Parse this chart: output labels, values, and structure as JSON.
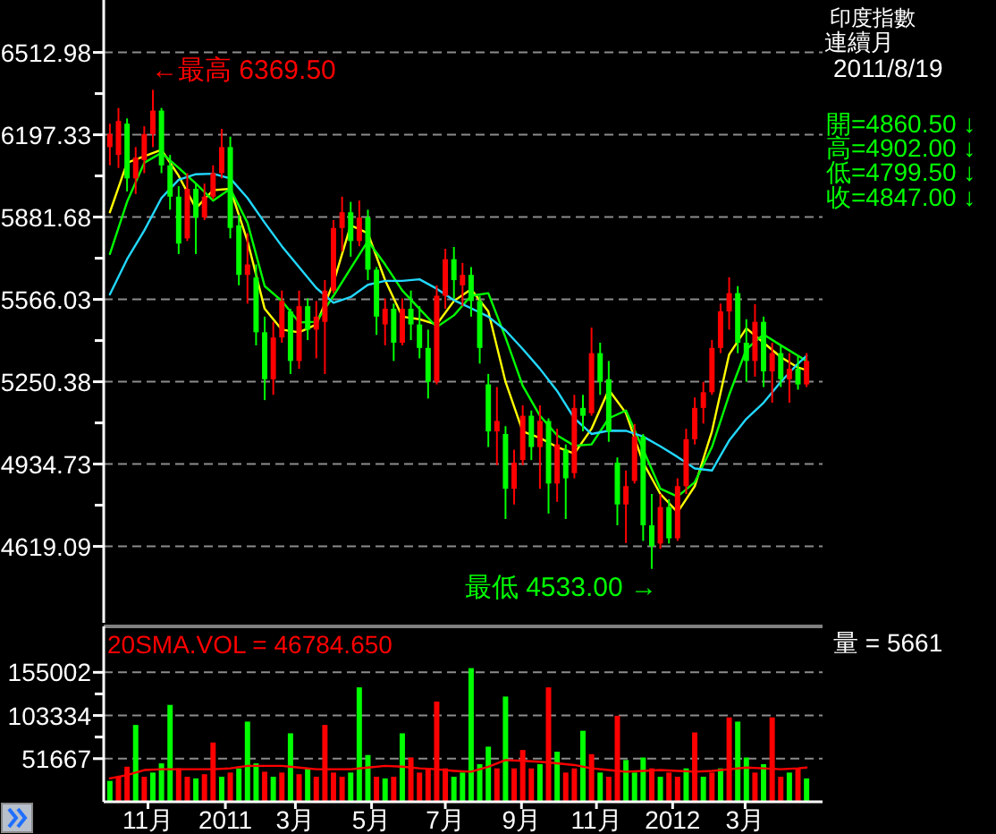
{
  "chart_data": [
    {
      "type": "candlestick",
      "title": "印度指數",
      "subtitle": "連續月",
      "x": [
        "2010-10-01",
        "2010-10-08",
        "2010-10-15",
        "2010-10-22",
        "2010-10-29",
        "2010-11-05",
        "2010-11-12",
        "2010-11-19",
        "2010-11-26",
        "2010-12-03",
        "2010-12-10",
        "2010-12-17",
        "2010-12-24",
        "2010-12-31",
        "2011-01-07",
        "2011-01-14",
        "2011-01-21",
        "2011-01-28",
        "2011-02-04",
        "2011-02-11",
        "2011-02-18",
        "2011-02-25",
        "2011-03-04",
        "2011-03-11",
        "2011-03-18",
        "2011-03-25",
        "2011-04-01",
        "2011-04-08",
        "2011-04-15",
        "2011-04-22",
        "2011-04-29",
        "2011-05-06",
        "2011-05-13",
        "2011-05-20",
        "2011-05-27",
        "2011-06-03",
        "2011-06-10",
        "2011-06-17",
        "2011-06-24",
        "2011-07-01",
        "2011-07-08",
        "2011-07-15",
        "2011-07-22",
        "2011-07-29",
        "2011-08-05",
        "2011-08-12",
        "2011-08-19",
        "2011-08-26",
        "2011-09-02",
        "2011-09-09",
        "2011-09-16",
        "2011-09-23",
        "2011-09-30",
        "2011-10-07",
        "2011-10-14",
        "2011-10-21",
        "2011-10-28",
        "2011-11-04",
        "2011-11-11",
        "2011-11-18",
        "2011-11-25",
        "2011-12-02",
        "2011-12-09",
        "2011-12-16",
        "2011-12-23",
        "2011-12-30",
        "2012-01-06",
        "2012-01-13",
        "2012-01-20",
        "2012-01-27",
        "2012-02-03",
        "2012-02-10",
        "2012-02-17",
        "2012-02-24",
        "2012-03-02",
        "2012-03-09",
        "2012-03-16",
        "2012-03-23",
        "2012-03-30",
        "2012-04-06",
        "2012-04-13",
        "2012-04-20"
      ],
      "ohlc": [
        [
          6150,
          6240,
          6080,
          6200
        ],
        [
          6120,
          6300,
          6070,
          6250
        ],
        [
          6240,
          6260,
          5980,
          6030
        ],
        [
          6030,
          6150,
          5970,
          6110
        ],
        [
          6100,
          6230,
          6050,
          6200
        ],
        [
          6200,
          6369.5,
          6150,
          6290
        ],
        [
          6290,
          6300,
          6050,
          6080
        ],
        [
          6080,
          6120,
          5910,
          5960
        ],
        [
          5960,
          6000,
          5740,
          5780
        ],
        [
          5800,
          6050,
          5790,
          5990
        ],
        [
          5990,
          6010,
          5740,
          5880
        ],
        [
          5880,
          6010,
          5870,
          5960
        ],
        [
          5960,
          6080,
          5950,
          6050
        ],
        [
          6050,
          6220,
          6030,
          6150
        ],
        [
          6150,
          6190,
          5800,
          5840
        ],
        [
          5850,
          5890,
          5620,
          5660
        ],
        [
          5660,
          5820,
          5550,
          5700
        ],
        [
          5650,
          5700,
          5390,
          5440
        ],
        [
          5440,
          5500,
          5180,
          5260
        ],
        [
          5260,
          5480,
          5200,
          5420
        ],
        [
          5420,
          5600,
          5400,
          5560
        ],
        [
          5520,
          5530,
          5280,
          5330
        ],
        [
          5330,
          5600,
          5300,
          5540
        ],
        [
          5540,
          5570,
          5410,
          5450
        ],
        [
          5450,
          5560,
          5340,
          5500
        ],
        [
          5480,
          5640,
          5280,
          5600
        ],
        [
          5600,
          5870,
          5590,
          5840
        ],
        [
          5840,
          5960,
          5750,
          5900
        ],
        [
          5900,
          5940,
          5730,
          5790
        ],
        [
          5790,
          5945,
          5770,
          5880
        ],
        [
          5880,
          5910,
          5640,
          5680
        ],
        [
          5680,
          5690,
          5430,
          5500
        ],
        [
          5470,
          5570,
          5390,
          5530
        ],
        [
          5530,
          5550,
          5330,
          5400
        ],
        [
          5400,
          5570,
          5390,
          5530
        ],
        [
          5530,
          5600,
          5410,
          5470
        ],
        [
          5470,
          5540,
          5340,
          5380
        ],
        [
          5380,
          5450,
          5186,
          5250
        ],
        [
          5250,
          5620,
          5240,
          5580
        ],
        [
          5580,
          5760,
          5530,
          5720
        ],
        [
          5720,
          5767,
          5570,
          5640
        ],
        [
          5620,
          5706,
          5540,
          5660
        ],
        [
          5660,
          5690,
          5500,
          5560
        ],
        [
          5560,
          5580,
          5320,
          5380
        ],
        [
          5240,
          5280,
          5000,
          5060
        ],
        [
          5060,
          5230,
          4930,
          5100
        ],
        [
          5050,
          5080,
          4724,
          4840
        ],
        [
          4840,
          4990,
          4780,
          4940
        ],
        [
          4950,
          5160,
          4930,
          5120
        ],
        [
          5120,
          5140,
          4950,
          5000
        ],
        [
          5000,
          5160,
          4840,
          5100
        ],
        [
          5100,
          5110,
          4745,
          4860
        ],
        [
          4860,
          5070,
          4790,
          5010
        ],
        [
          4990,
          5010,
          4724,
          4880
        ],
        [
          4900,
          5200,
          4880,
          5150
        ],
        [
          5150,
          5200,
          5060,
          5120
        ],
        [
          5130,
          5458,
          5120,
          5360
        ],
        [
          5360,
          5400,
          5200,
          5250
        ],
        [
          5260,
          5330,
          5020,
          5060
        ],
        [
          4940,
          4960,
          4700,
          4780
        ],
        [
          4780,
          4910,
          4632,
          4850
        ],
        [
          4870,
          5088,
          4860,
          5040
        ],
        [
          5040,
          5050,
          4640,
          4700
        ],
        [
          4700,
          4820,
          4533,
          4620
        ],
        [
          4630,
          4820,
          4610,
          4770
        ],
        [
          4770,
          4800,
          4630,
          4650
        ],
        [
          4650,
          4880,
          4640,
          4850
        ],
        [
          4850,
          5070,
          4820,
          5030
        ],
        [
          5030,
          5190,
          5010,
          5150
        ],
        [
          5150,
          5250,
          5090,
          5210
        ],
        [
          5210,
          5410,
          5200,
          5380
        ],
        [
          5380,
          5550,
          5360,
          5520
        ],
        [
          5520,
          5651,
          5450,
          5590
        ],
        [
          5590,
          5617,
          5360,
          5400
        ],
        [
          5400,
          5490,
          5250,
          5330
        ],
        [
          5330,
          5548,
          5270,
          5480
        ],
        [
          5480,
          5500,
          5230,
          5290
        ],
        [
          5290,
          5400,
          5170,
          5360
        ],
        [
          5360,
          5390,
          5230,
          5260
        ],
        [
          5260,
          5360,
          5170,
          5300
        ],
        [
          5300,
          5350,
          5220,
          5240
        ],
        [
          5240,
          5360,
          5230,
          5330
        ]
      ],
      "colors": [
        "#ff0000",
        "#ff0000",
        "#00ff00",
        "#ff0000",
        "#ff0000",
        "#ff0000",
        "#00ff00",
        "#00ff00",
        "#00ff00",
        "#ff0000",
        "#00ff00",
        "#ff0000",
        "#ff0000",
        "#ff0000",
        "#00ff00",
        "#00ff00",
        "#ff0000",
        "#00ff00",
        "#00ff00",
        "#ff0000",
        "#ff0000",
        "#00ff00",
        "#ff0000",
        "#00ff00",
        "#ff0000",
        "#ff0000",
        "#ff0000",
        "#ff0000",
        "#00ff00",
        "#ff0000",
        "#00ff00",
        "#00ff00",
        "#ff0000",
        "#00ff00",
        "#ff0000",
        "#00ff00",
        "#00ff00",
        "#00ff00",
        "#ff0000",
        "#ff0000",
        "#00ff00",
        "#ff0000",
        "#00ff00",
        "#00ff00",
        "#00ff00",
        "#ff0000",
        "#00ff00",
        "#ff0000",
        "#ff0000",
        "#00ff00",
        "#ff0000",
        "#00ff00",
        "#ff0000",
        "#00ff00",
        "#ff0000",
        "#00ff00",
        "#ff0000",
        "#00ff00",
        "#00ff00",
        "#00ff00",
        "#ff0000",
        "#ff0000",
        "#00ff00",
        "#00ff00",
        "#ff0000",
        "#00ff00",
        "#ff0000",
        "#ff0000",
        "#ff0000",
        "#ff0000",
        "#ff0000",
        "#ff0000",
        "#ff0000",
        "#00ff00",
        "#00ff00",
        "#ff0000",
        "#00ff00",
        "#ff0000",
        "#00ff00",
        "#ff0000",
        "#00ff00",
        "#ff0000"
      ],
      "series": [
        {
          "type": "line",
          "color": "#ffff00",
          "x": [
            "2010-10-01",
            "2010-10-15",
            "2010-10-29",
            "2010-11-12",
            "2010-11-26",
            "2010-12-10",
            "2010-12-24",
            "2011-01-07",
            "2011-01-21",
            "2011-02-04",
            "2011-02-18",
            "2011-03-04",
            "2011-03-18",
            "2011-04-01",
            "2011-04-15",
            "2011-04-29",
            "2011-05-13",
            "2011-05-27",
            "2011-06-10",
            "2011-06-24",
            "2011-07-08",
            "2011-07-22",
            "2011-08-05",
            "2011-08-19",
            "2011-09-02",
            "2011-09-16",
            "2011-09-30",
            "2011-10-14",
            "2011-10-28",
            "2011-11-11",
            "2011-11-25",
            "2011-12-09",
            "2011-12-23",
            "2012-01-06",
            "2012-01-20",
            "2012-02-03",
            "2012-02-17",
            "2012-03-02",
            "2012-03-16",
            "2012-03-30",
            "2012-04-13",
            "2012-04-20"
          ],
          "values": [
            5900,
            6090,
            6115,
            6140,
            6040,
            5915,
            5985,
            5990,
            5790,
            5530,
            5450,
            5440,
            5470,
            5630,
            5850,
            5820,
            5640,
            5500,
            5490,
            5470,
            5560,
            5605,
            5520,
            5250,
            5060,
            5035,
            5000,
            4975,
            5070,
            5220,
            5130,
            4940,
            4820,
            4750,
            4850,
            5060,
            5355,
            5455,
            5400,
            5345,
            5305,
            5295
          ]
        },
        {
          "type": "line",
          "color": "#00ff00",
          "x": [
            "2010-10-01",
            "2010-10-15",
            "2010-10-29",
            "2010-11-12",
            "2010-11-26",
            "2010-12-10",
            "2010-12-24",
            "2011-01-07",
            "2011-01-21",
            "2011-02-04",
            "2011-02-18",
            "2011-03-04",
            "2011-03-18",
            "2011-04-01",
            "2011-04-15",
            "2011-04-29",
            "2011-05-13",
            "2011-05-27",
            "2011-06-10",
            "2011-06-24",
            "2011-07-08",
            "2011-07-22",
            "2011-08-05",
            "2011-08-19",
            "2011-09-02",
            "2011-09-16",
            "2011-09-30",
            "2011-10-14",
            "2011-10-28",
            "2011-11-11",
            "2011-11-25",
            "2011-12-09",
            "2011-12-23",
            "2012-01-06",
            "2012-01-20",
            "2012-02-03",
            "2012-02-17",
            "2012-03-02",
            "2012-03-16",
            "2012-03-30",
            "2012-04-13",
            "2012-04-20"
          ],
          "values": [
            5740,
            5940,
            6090,
            6128,
            6070,
            6010,
            5945,
            5990,
            5860,
            5617,
            5560,
            5478,
            5480,
            5580,
            5685,
            5790,
            5700,
            5600,
            5530,
            5460,
            5505,
            5580,
            5590,
            5420,
            5235,
            5120,
            5045,
            5005,
            5010,
            5110,
            5140,
            4990,
            4840,
            4810,
            4865,
            5000,
            5200,
            5375,
            5432,
            5390,
            5350,
            5330
          ]
        },
        {
          "type": "line",
          "color": "#22d8ff",
          "x": [
            "2010-10-01",
            "2010-10-15",
            "2010-10-29",
            "2010-11-12",
            "2010-11-26",
            "2010-12-10",
            "2010-12-24",
            "2011-01-07",
            "2011-01-21",
            "2011-02-04",
            "2011-02-18",
            "2011-03-04",
            "2011-03-18",
            "2011-04-01",
            "2011-04-15",
            "2011-04-29",
            "2011-05-13",
            "2011-05-27",
            "2011-06-10",
            "2011-06-24",
            "2011-07-08",
            "2011-07-22",
            "2011-08-05",
            "2011-08-19",
            "2011-09-02",
            "2011-09-16",
            "2011-09-30",
            "2011-10-14",
            "2011-10-28",
            "2011-11-11",
            "2011-11-25",
            "2011-12-09",
            "2011-12-23",
            "2012-01-06",
            "2012-01-20",
            "2012-02-03",
            "2012-02-17",
            "2012-03-02",
            "2012-03-16",
            "2012-03-30",
            "2012-04-13",
            "2012-04-20"
          ],
          "values": [
            5585,
            5720,
            5830,
            5955,
            6025,
            6046,
            6048,
            6030,
            5955,
            5860,
            5770,
            5690,
            5610,
            5553,
            5575,
            5622,
            5637,
            5637,
            5643,
            5607,
            5563,
            5532,
            5500,
            5447,
            5376,
            5300,
            5215,
            5110,
            5050,
            5063,
            5062,
            5040,
            5003,
            4962,
            4918,
            4910,
            5025,
            5108,
            5170,
            5250,
            5320,
            5350
          ]
        }
      ],
      "xlim": [
        "2010-09-26",
        "2012-05-03"
      ],
      "ylim": [
        4326,
        6714
      ],
      "yticks": [
        6512.98,
        {
          "value": 6355.16,
          "label": null
        },
        6197.33,
        {
          "value": 6039.51,
          "label": null
        },
        5881.68,
        {
          "value": 5723.86,
          "label": null
        },
        5566.03,
        {
          "value": 5408.21,
          "label": null
        },
        5250.38,
        {
          "value": 5092.56,
          "label": null
        },
        4934.73,
        {
          "value": 4776.91,
          "label": null
        },
        4619.09
      ],
      "tick_labels": "y",
      "grid": "y",
      "annotations": [
        "2011/8/19",
        "開=4860.50 ↓",
        "高=4902.00 ↓",
        "低=4799.50 ↓",
        "收=4847.00 ↓",
        {
          "text": "←最高 6369.50",
          "x": "2010-11-05",
          "y": 6369.5
        },
        {
          "text": "最低 4533.00 →",
          "x": "2011-12-16",
          "y": 4533
        }
      ]
    },
    {
      "type": "bar",
      "x": [
        "2010-10-01",
        "2010-10-08",
        "2010-10-15",
        "2010-10-22",
        "2010-10-29",
        "2010-11-05",
        "2010-11-12",
        "2010-11-19",
        "2010-11-26",
        "2010-12-03",
        "2010-12-10",
        "2010-12-17",
        "2010-12-24",
        "2010-12-31",
        "2011-01-07",
        "2011-01-14",
        "2011-01-21",
        "2011-01-28",
        "2011-02-04",
        "2011-02-11",
        "2011-02-18",
        "2011-02-25",
        "2011-03-04",
        "2011-03-11",
        "2011-03-18",
        "2011-03-25",
        "2011-04-01",
        "2011-04-08",
        "2011-04-15",
        "2011-04-22",
        "2011-04-29",
        "2011-05-06",
        "2011-05-13",
        "2011-05-20",
        "2011-05-27",
        "2011-06-03",
        "2011-06-10",
        "2011-06-17",
        "2011-06-24",
        "2011-07-01",
        "2011-07-08",
        "2011-07-15",
        "2011-07-22",
        "2011-07-29",
        "2011-08-05",
        "2011-08-12",
        "2011-08-19",
        "2011-08-26",
        "2011-09-02",
        "2011-09-09",
        "2011-09-16",
        "2011-09-23",
        "2011-09-30",
        "2011-10-07",
        "2011-10-14",
        "2011-10-21",
        "2011-10-28",
        "2011-11-04",
        "2011-11-11",
        "2011-11-18",
        "2011-11-25",
        "2011-12-02",
        "2011-12-09",
        "2011-12-16",
        "2011-12-23",
        "2011-12-30",
        "2012-01-06",
        "2012-01-13",
        "2012-01-20",
        "2012-01-27",
        "2012-02-03",
        "2012-02-10",
        "2012-02-17",
        "2012-02-24",
        "2012-03-02",
        "2012-03-09",
        "2012-03-16",
        "2012-03-23",
        "2012-03-30",
        "2012-04-06",
        "2012-04-13",
        "2012-04-20"
      ],
      "series": [
        {
          "type": "bar",
          "values": [
            25000,
            30000,
            42000,
            92000,
            30000,
            35000,
            46000,
            116000,
            40000,
            30000,
            28000,
            33000,
            71000,
            30000,
            35000,
            40000,
            96000,
            46000,
            36000,
            30000,
            35000,
            82000,
            33000,
            40000,
            30000,
            92000,
            35000,
            30000,
            35000,
            137000,
            56000,
            30000,
            28000,
            30000,
            82000,
            53000,
            35000,
            40000,
            120000,
            40000,
            30000,
            35000,
            160000,
            45000,
            66000,
            40000,
            126000,
            40000,
            62000,
            40000,
            45000,
            137000,
            60000,
            35000,
            40000,
            85000,
            57000,
            35000,
            30000,
            103000,
            50000,
            35000,
            53000,
            40000,
            30000,
            35000,
            30000,
            40000,
            83000,
            30000,
            35000,
            40000,
            101000,
            96000,
            53000,
            35000,
            45000,
            101000,
            30000,
            35000,
            40000,
            28000
          ],
          "colors": [
            "#00ff00",
            "#ff0000",
            "#ff0000",
            "#00ff00",
            "#ff0000",
            "#00ff00",
            "#00ff00",
            "#00ff00",
            "#ff0000",
            "#ff0000",
            "#00ff00",
            "#ff0000",
            "#ff0000",
            "#00ff00",
            "#ff0000",
            "#00ff00",
            "#00ff00",
            "#00ff00",
            "#ff0000",
            "#00ff00",
            "#ff0000",
            "#00ff00",
            "#ff0000",
            "#00ff00",
            "#ff0000",
            "#ff0000",
            "#ff0000",
            "#ff0000",
            "#00ff00",
            "#00ff00",
            "#00ff00",
            "#ff0000",
            "#00ff00",
            "#ff0000",
            "#00ff00",
            "#ff0000",
            "#ff0000",
            "#ff0000",
            "#ff0000",
            "#ff0000",
            "#00ff00",
            "#00ff00",
            "#00ff00",
            "#00ff00",
            "#00ff00",
            "#ff0000",
            "#00ff00",
            "#ff0000",
            "#ff0000",
            "#ff0000",
            "#00ff00",
            "#ff0000",
            "#00ff00",
            "#ff0000",
            "#ff0000",
            "#00ff00",
            "#ff0000",
            "#00ff00",
            "#ff0000",
            "#ff0000",
            "#00ff00",
            "#00ff00",
            "#00ff00",
            "#ff0000",
            "#00ff00",
            "#ff0000",
            "#ff0000",
            "#00ff00",
            "#ff0000",
            "#00ff00",
            "#ff0000",
            "#00ff00",
            "#ff0000",
            "#00ff00",
            "#00ff00",
            "#ff0000",
            "#00ff00",
            "#ff0000",
            "#ff0000",
            "#00ff00",
            "#ff0000",
            "#00ff00"
          ]
        },
        {
          "type": "line",
          "name": "20SMA.VOL = 46784.650",
          "color": "#ff0000",
          "x": [
            "2010-10-01",
            "2010-10-15",
            "2010-10-29",
            "2010-11-12",
            "2010-11-26",
            "2010-12-10",
            "2010-12-24",
            "2011-01-07",
            "2011-01-21",
            "2011-02-04",
            "2011-02-18",
            "2011-03-04",
            "2011-03-18",
            "2011-04-01",
            "2011-04-15",
            "2011-04-29",
            "2011-05-13",
            "2011-05-27",
            "2011-06-10",
            "2011-06-24",
            "2011-07-08",
            "2011-07-22",
            "2011-08-05",
            "2011-08-19",
            "2011-09-02",
            "2011-09-16",
            "2011-09-30",
            "2011-10-14",
            "2011-10-28",
            "2011-11-11",
            "2011-11-25",
            "2011-12-09",
            "2011-12-23",
            "2012-01-06",
            "2012-01-20",
            "2012-02-03",
            "2012-02-17",
            "2012-03-02",
            "2012-03-16",
            "2012-03-30",
            "2012-04-13",
            "2012-04-20"
          ],
          "values": [
            28000,
            32000,
            38000,
            39000,
            39000,
            39000,
            39000,
            40000,
            43000,
            43000,
            43000,
            41000,
            39000,
            39000,
            39000,
            41000,
            43000,
            42000,
            40000,
            39000,
            37000,
            36000,
            42000,
            50000,
            49000,
            48000,
            46000,
            44000,
            40000,
            38000,
            36000,
            37000,
            38000,
            37000,
            36000,
            37000,
            39000,
            41000,
            40000,
            39000,
            40000,
            41000
          ]
        }
      ],
      "xlim": [
        "2010-09-26",
        "2012-05-03"
      ],
      "xticks": [
        {
          "value": "2010-11-01",
          "label": "11月"
        },
        {
          "value": "2011-01-03",
          "label": "2011"
        },
        {
          "value": "2011-03-01",
          "label": "3月"
        },
        {
          "value": "2011-05-02",
          "label": "5月"
        },
        {
          "value": "2011-07-01",
          "label": "7月"
        },
        {
          "value": "2011-09-01",
          "label": "9月"
        },
        {
          "value": "2011-11-01",
          "label": "11月"
        },
        {
          "value": "2012-01-02",
          "label": "2012"
        },
        {
          "value": "2012-03-01",
          "label": "3月"
        }
      ],
      "ylim": [
        0,
        210000
      ],
      "yticks": [
        155002,
        {
          "value": 129168,
          "label": null
        },
        103334,
        {
          "value": 77500,
          "label": null
        },
        51667
      ],
      "grid": "y",
      "legend": "top left",
      "annotations": [
        "量 = 5661"
      ]
    }
  ]
}
